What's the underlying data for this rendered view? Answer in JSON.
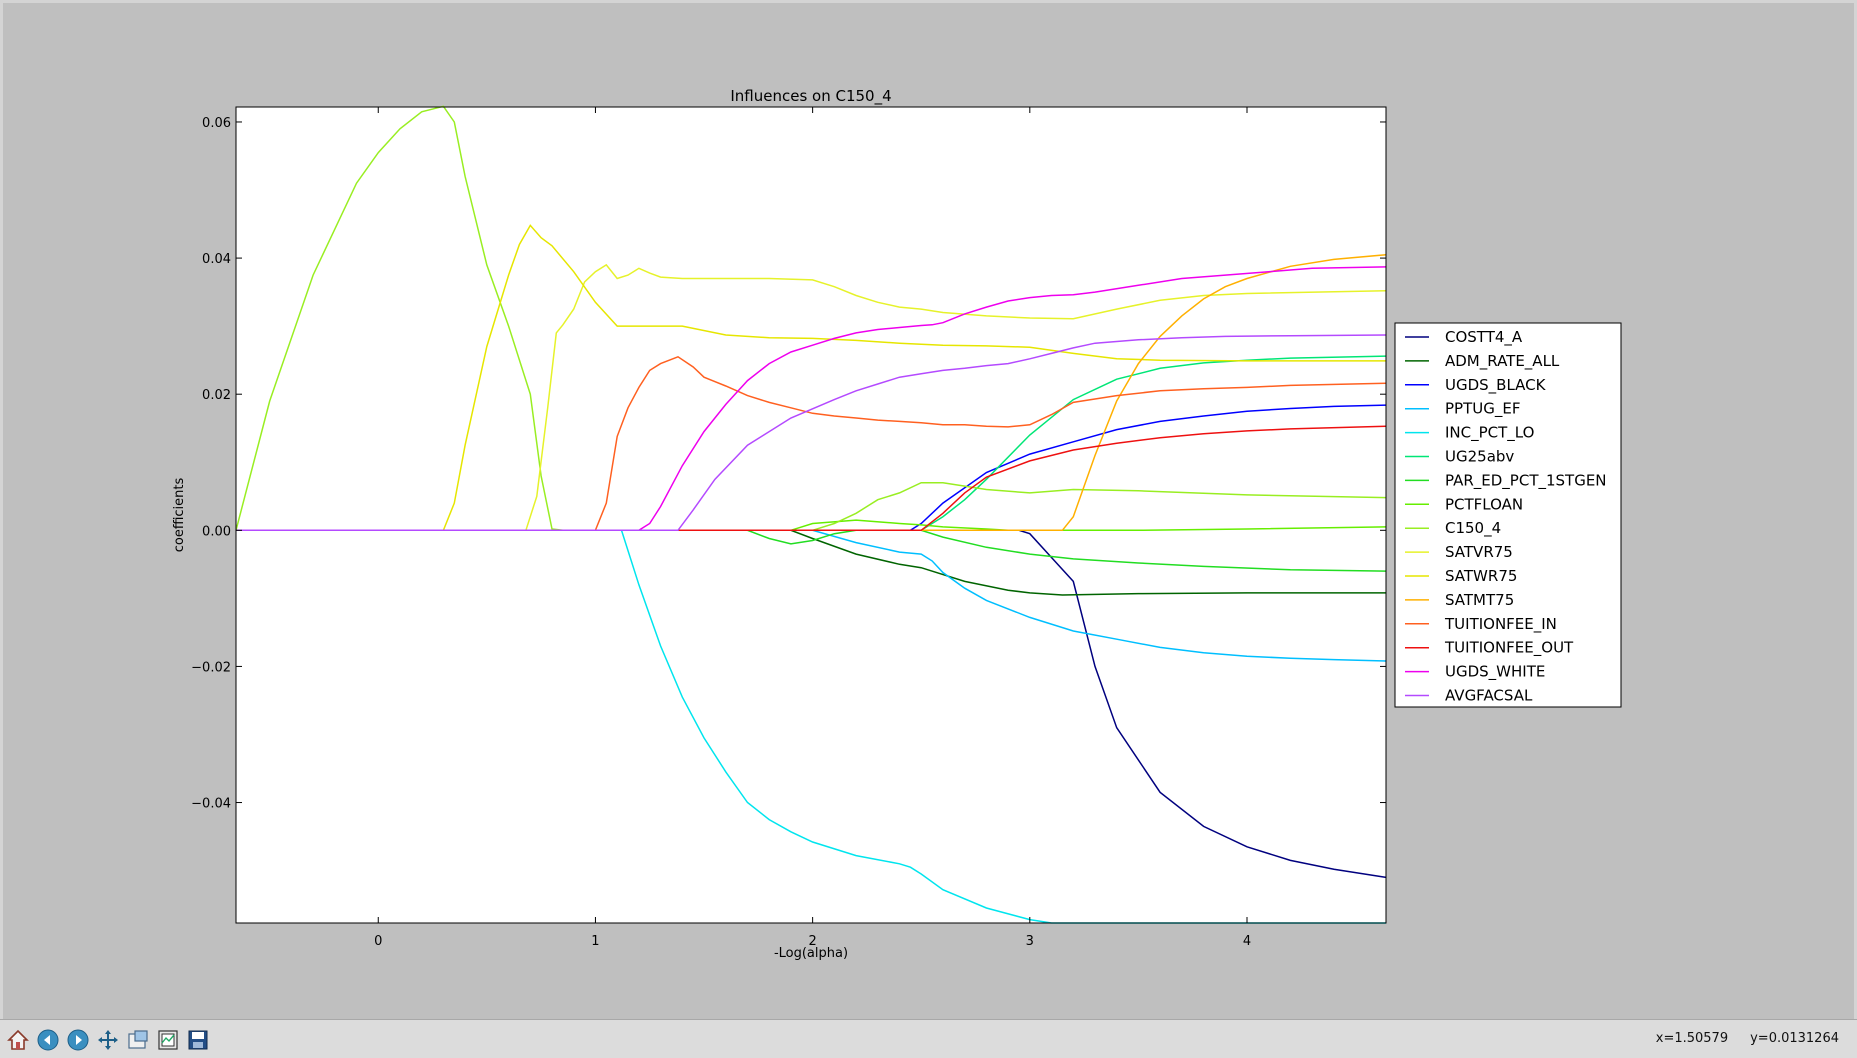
{
  "window": {
    "toolbar_icons": [
      "home-icon",
      "back-icon",
      "forward-icon",
      "pan-icon",
      "zoom-icon",
      "subplots-icon",
      "save-icon"
    ]
  },
  "status": {
    "x_readout": "x=1.50579",
    "y_readout": "y=0.0131264"
  },
  "chart_data": {
    "type": "line",
    "title": "Influences on C150_4",
    "xlabel": "-Log(alpha)",
    "ylabel": "coefficients",
    "xlim": [
      -0.655,
      4.64
    ],
    "ylim": [
      -0.0577,
      0.0622
    ],
    "xticks": [
      0,
      1,
      2,
      3,
      4
    ],
    "xtick_labels": [
      "0",
      "1",
      "2",
      "3",
      "4"
    ],
    "yticks": [
      -0.04,
      -0.02,
      0.0,
      0.02,
      0.04,
      0.06
    ],
    "ytick_labels": [
      "−0.04",
      "−0.02",
      "0.00",
      "0.02",
      "0.04",
      "0.06"
    ],
    "grid": false,
    "legend_position": "right, outside plot",
    "series": [
      {
        "name": "COSTT4_A",
        "color": "#00007f",
        "x": [
          -0.655,
          2.95,
          3.0,
          3.1,
          3.2,
          3.3,
          3.4,
          3.6,
          3.8,
          4.0,
          4.2,
          4.4,
          4.64
        ],
        "y": [
          0,
          0,
          -0.0005,
          -0.004,
          -0.0075,
          -0.02,
          -0.029,
          -0.0385,
          -0.0435,
          -0.0465,
          -0.0485,
          -0.0498,
          -0.051
        ]
      },
      {
        "name": "ADM_RATE_ALL",
        "color": "#006400",
        "x": [
          -0.655,
          1.9,
          2.0,
          2.2,
          2.4,
          2.5,
          2.7,
          2.9,
          3.0,
          3.15,
          3.5,
          4.0,
          4.64
        ],
        "y": [
          0,
          0,
          -0.0012,
          -0.0035,
          -0.005,
          -0.0055,
          -0.0075,
          -0.0088,
          -0.0092,
          -0.0095,
          -0.0093,
          -0.0092,
          -0.0092
        ]
      },
      {
        "name": "UGDS_BLACK",
        "color": "#0000ff",
        "x": [
          -0.655,
          2.45,
          2.5,
          2.6,
          2.8,
          3.0,
          3.2,
          3.4,
          3.6,
          3.8,
          4.0,
          4.2,
          4.4,
          4.64
        ],
        "y": [
          0,
          0,
          0.001,
          0.004,
          0.0085,
          0.0112,
          0.013,
          0.0148,
          0.016,
          0.0168,
          0.0175,
          0.0179,
          0.0182,
          0.0184
        ]
      },
      {
        "name": "PPTUG_EF",
        "color": "#00bfff",
        "x": [
          -0.655,
          2.0,
          2.2,
          2.4,
          2.5,
          2.55,
          2.6,
          2.7,
          2.8,
          3.0,
          3.2,
          3.4,
          3.6,
          3.8,
          4.0,
          4.2,
          4.4,
          4.64
        ],
        "y": [
          0,
          0,
          -0.0018,
          -0.0032,
          -0.0035,
          -0.0045,
          -0.0062,
          -0.0085,
          -0.0103,
          -0.0128,
          -0.0148,
          -0.016,
          -0.0172,
          -0.018,
          -0.0185,
          -0.0188,
          -0.019,
          -0.0192
        ]
      },
      {
        "name": "INC_PCT_LO",
        "color": "#00e5ee",
        "x": [
          -0.655,
          1.12,
          1.2,
          1.3,
          1.4,
          1.5,
          1.6,
          1.7,
          1.8,
          1.9,
          2.0,
          2.2,
          2.4,
          2.45,
          2.5,
          2.6,
          2.8,
          3.0,
          3.1,
          3.2,
          3.5,
          4.0,
          4.64
        ],
        "y": [
          0,
          0,
          -0.008,
          -0.017,
          -0.0245,
          -0.0305,
          -0.0355,
          -0.04,
          -0.0425,
          -0.0443,
          -0.0458,
          -0.0478,
          -0.049,
          -0.0495,
          -0.0505,
          -0.0528,
          -0.0555,
          -0.0572,
          -0.0577,
          -0.0577,
          -0.0577,
          -0.0577,
          -0.0577
        ]
      },
      {
        "name": "UG25abv",
        "color": "#00e676",
        "x": [
          -0.655,
          2.5,
          2.6,
          2.7,
          2.8,
          3.0,
          3.2,
          3.4,
          3.6,
          3.8,
          4.0,
          4.2,
          4.64
        ],
        "y": [
          0,
          0,
          0.002,
          0.0045,
          0.0075,
          0.014,
          0.0192,
          0.0222,
          0.0238,
          0.0246,
          0.025,
          0.0253,
          0.0256
        ]
      },
      {
        "name": "PAR_ED_PCT_1STGEN",
        "color": "#22dd22",
        "x": [
          -0.655,
          1.7,
          1.8,
          1.9,
          2.0,
          2.1,
          2.2,
          2.4,
          2.5,
          2.6,
          2.8,
          3.0,
          3.2,
          3.5,
          3.8,
          4.2,
          4.64
        ],
        "y": [
          0,
          0,
          -0.0012,
          -0.002,
          -0.0015,
          -0.0005,
          0,
          0,
          0,
          -0.001,
          -0.0025,
          -0.0035,
          -0.0042,
          -0.0048,
          -0.0053,
          -0.0058,
          -0.006
        ]
      },
      {
        "name": "PCTFLOAN",
        "color": "#66ee00",
        "x": [
          -0.655,
          1.9,
          2.0,
          2.2,
          2.4,
          2.5,
          2.6,
          2.8,
          2.9,
          3.0,
          3.2,
          3.5,
          4.0,
          4.64
        ],
        "y": [
          0,
          0,
          0.001,
          0.0015,
          0.001,
          0.0008,
          0.0005,
          0.0002,
          0,
          0,
          0,
          0,
          0.0002,
          0.0005
        ]
      },
      {
        "name": "C150_4",
        "color": "#99ee22",
        "x": [
          -0.655,
          -0.5,
          -0.3,
          -0.1,
          0.0,
          0.1,
          0.2,
          0.3,
          0.35,
          0.4,
          0.5,
          0.6,
          0.7,
          0.75,
          0.8,
          0.85,
          2.0,
          2.1,
          2.2,
          2.3,
          2.4,
          2.5,
          2.6,
          2.7,
          2.8,
          3.0,
          3.2,
          3.5,
          4.0,
          4.64
        ],
        "y": [
          0,
          0.019,
          0.0375,
          0.051,
          0.0555,
          0.059,
          0.0615,
          0.0623,
          0.06,
          0.052,
          0.039,
          0.03,
          0.02,
          0.008,
          0.0002,
          0,
          0,
          0.001,
          0.0025,
          0.0045,
          0.0055,
          0.007,
          0.007,
          0.0065,
          0.006,
          0.0055,
          0.006,
          0.0058,
          0.0052,
          0.0048
        ]
      },
      {
        "name": "SATVR75",
        "color": "#e6f22a",
        "x": [
          -0.655,
          0.68,
          0.73,
          0.78,
          0.82,
          0.85,
          0.9,
          0.95,
          1.0,
          1.05,
          1.1,
          1.15,
          1.2,
          1.25,
          1.3,
          1.4,
          1.6,
          1.8,
          2.0,
          2.1,
          2.2,
          2.3,
          2.4,
          2.5,
          2.6,
          2.8,
          3.0,
          3.2,
          3.4,
          3.6,
          3.8,
          4.0,
          4.64
        ],
        "y": [
          0,
          0,
          0.005,
          0.018,
          0.029,
          0.0302,
          0.0325,
          0.0365,
          0.038,
          0.039,
          0.037,
          0.0375,
          0.0385,
          0.0378,
          0.0372,
          0.037,
          0.037,
          0.037,
          0.0368,
          0.0358,
          0.0345,
          0.0335,
          0.0328,
          0.0325,
          0.032,
          0.0315,
          0.0312,
          0.0311,
          0.0325,
          0.0338,
          0.0345,
          0.0348,
          0.0352
        ]
      },
      {
        "name": "SATWR75",
        "color": "#e6e600",
        "x": [
          -0.655,
          0.3,
          0.35,
          0.4,
          0.5,
          0.6,
          0.65,
          0.7,
          0.75,
          0.8,
          0.9,
          1.0,
          1.1,
          1.2,
          1.3,
          1.4,
          1.6,
          1.8,
          2.0,
          2.2,
          2.4,
          2.6,
          2.8,
          3.0,
          3.2,
          3.4,
          3.6,
          4.0,
          4.64
        ],
        "y": [
          0,
          0,
          0.004,
          0.0125,
          0.027,
          0.0375,
          0.042,
          0.0448,
          0.043,
          0.0418,
          0.038,
          0.0335,
          0.03,
          0.03,
          0.03,
          0.03,
          0.0287,
          0.0283,
          0.0282,
          0.0279,
          0.0275,
          0.0272,
          0.0271,
          0.0269,
          0.026,
          0.0252,
          0.025,
          0.0249,
          0.0249
        ]
      },
      {
        "name": "SATMT75",
        "color": "#ffb000",
        "x": [
          -0.655,
          3.15,
          3.2,
          3.3,
          3.4,
          3.5,
          3.6,
          3.7,
          3.8,
          3.9,
          4.0,
          4.2,
          4.4,
          4.64
        ],
        "y": [
          0,
          0,
          0.002,
          0.011,
          0.019,
          0.0245,
          0.0285,
          0.0315,
          0.034,
          0.0358,
          0.037,
          0.0388,
          0.0398,
          0.0405
        ]
      },
      {
        "name": "TUITIONFEE_IN",
        "color": "#ff6020",
        "x": [
          -0.655,
          1.0,
          1.05,
          1.1,
          1.15,
          1.2,
          1.25,
          1.3,
          1.38,
          1.45,
          1.5,
          1.6,
          1.7,
          1.8,
          1.9,
          2.0,
          2.1,
          2.2,
          2.3,
          2.4,
          2.5,
          2.6,
          2.7,
          2.8,
          2.9,
          3.0,
          3.1,
          3.2,
          3.4,
          3.6,
          3.8,
          4.0,
          4.2,
          4.64
        ],
        "y": [
          0,
          0,
          0.004,
          0.0138,
          0.018,
          0.021,
          0.0235,
          0.0245,
          0.0255,
          0.024,
          0.0225,
          0.0212,
          0.0198,
          0.0188,
          0.018,
          0.0172,
          0.0168,
          0.0165,
          0.0162,
          0.016,
          0.0158,
          0.0155,
          0.0155,
          0.0153,
          0.0152,
          0.0155,
          0.017,
          0.0188,
          0.0198,
          0.0205,
          0.0208,
          0.021,
          0.0213,
          0.0216
        ]
      },
      {
        "name": "TUITIONFEE_OUT",
        "color": "#ee1010",
        "x": [
          -0.655,
          2.5,
          2.6,
          2.7,
          2.8,
          3.0,
          3.2,
          3.4,
          3.6,
          3.8,
          4.0,
          4.2,
          4.64
        ],
        "y": [
          0,
          0,
          0.0025,
          0.0055,
          0.0078,
          0.0102,
          0.0118,
          0.0128,
          0.0136,
          0.0142,
          0.0146,
          0.0149,
          0.0153
        ]
      },
      {
        "name": "UGDS_WHITE",
        "color": "#ee00ee",
        "x": [
          -0.655,
          1.2,
          1.25,
          1.3,
          1.4,
          1.5,
          1.6,
          1.7,
          1.8,
          1.9,
          2.0,
          2.1,
          2.2,
          2.3,
          2.4,
          2.5,
          2.55,
          2.6,
          2.7,
          2.8,
          2.9,
          3.0,
          3.1,
          3.2,
          3.3,
          3.5,
          3.7,
          3.9,
          4.1,
          4.3,
          4.64
        ],
        "y": [
          0,
          0,
          0.001,
          0.0035,
          0.0095,
          0.0145,
          0.0185,
          0.022,
          0.0245,
          0.0262,
          0.0272,
          0.0282,
          0.029,
          0.0295,
          0.0298,
          0.0301,
          0.0302,
          0.0305,
          0.0318,
          0.0328,
          0.0337,
          0.0342,
          0.0345,
          0.0346,
          0.035,
          0.036,
          0.037,
          0.0375,
          0.038,
          0.0385,
          0.0387
        ]
      },
      {
        "name": "AVGFACSAL",
        "color": "#b44aff",
        "x": [
          -0.655,
          1.38,
          1.45,
          1.55,
          1.7,
          1.9,
          2.1,
          2.2,
          2.3,
          2.4,
          2.5,
          2.6,
          2.7,
          2.8,
          2.9,
          3.0,
          3.1,
          3.2,
          3.3,
          3.5,
          3.7,
          3.9,
          4.2,
          4.64
        ],
        "y": [
          0,
          0,
          0.003,
          0.0075,
          0.0125,
          0.0165,
          0.0192,
          0.0205,
          0.0215,
          0.0225,
          0.023,
          0.0235,
          0.0238,
          0.0242,
          0.0245,
          0.0252,
          0.026,
          0.0268,
          0.0275,
          0.028,
          0.0283,
          0.0285,
          0.0286,
          0.0287
        ]
      }
    ]
  }
}
